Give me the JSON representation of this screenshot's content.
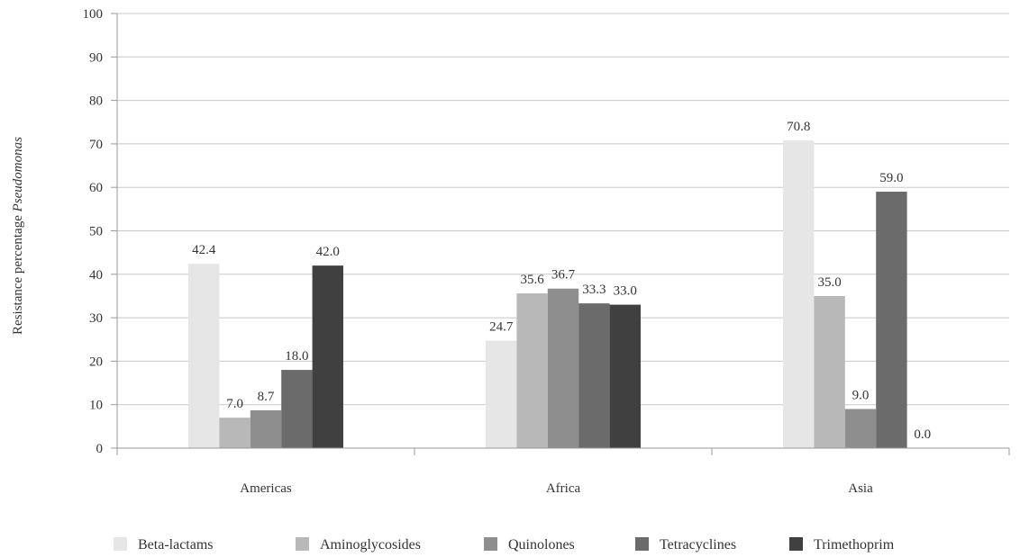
{
  "chart_data": {
    "type": "bar",
    "title": "",
    "xlabel": "",
    "ylabel": "Resistance percentage ",
    "ylabel_italic": "Pseudomonas",
    "ylim": [
      0,
      100
    ],
    "yticks": [
      0,
      10,
      20,
      30,
      40,
      50,
      60,
      70,
      80,
      90,
      100
    ],
    "ytick_labels": [
      "0",
      "10",
      "20",
      "30",
      "40",
      "50",
      "60",
      "70",
      "80",
      "90",
      "100"
    ],
    "grid": true,
    "legend_position": "bottom",
    "categories": [
      "Americas",
      "Africa",
      "Asia"
    ],
    "series": [
      {
        "name": "Beta-lactams",
        "color": "#e6e6e6",
        "values": [
          42.4,
          24.7,
          70.8
        ],
        "labels": [
          "42.4",
          "24.7",
          "70.8"
        ]
      },
      {
        "name": "Aminoglycosides",
        "color": "#b8b8b8",
        "values": [
          7.0,
          35.6,
          35.0
        ],
        "labels": [
          "7.0",
          "35.6",
          "35.0"
        ]
      },
      {
        "name": "Quinolones",
        "color": "#8e8e8e",
        "values": [
          8.7,
          36.7,
          9.0
        ],
        "labels": [
          "8.7",
          "36.7",
          "9.0"
        ]
      },
      {
        "name": "Tetracyclines",
        "color": "#6b6b6b",
        "values": [
          18.0,
          33.3,
          59.0
        ],
        "labels": [
          "18.0",
          "33.3",
          "59.0"
        ]
      },
      {
        "name": "Trimethoprim",
        "color": "#404040",
        "values": [
          42.0,
          33.0,
          0.0
        ],
        "labels": [
          "42.0",
          "33.0",
          "0.0"
        ]
      }
    ],
    "gridline_color": "#c8c8c8",
    "axis_color": "#999999"
  }
}
